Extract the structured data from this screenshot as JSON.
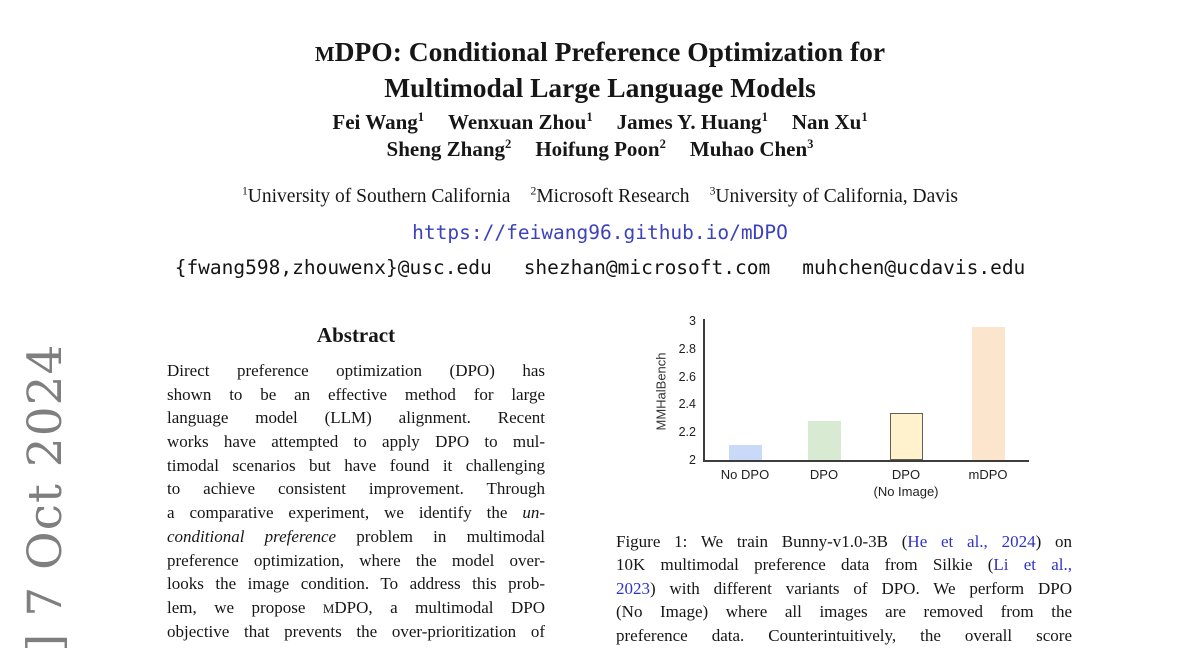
{
  "watermark": {
    "text": "] 7 Oct 2024"
  },
  "title": {
    "lines": [
      [
        {
          "t": "M",
          "s": "m"
        },
        {
          "t": "DPO: Conditional Preference Optimization for",
          "s": ""
        }
      ],
      [
        {
          "t": "Multimodal Large Language Models",
          "s": ""
        }
      ]
    ]
  },
  "authors": {
    "rows": [
      [
        {
          "name": "Fei Wang",
          "sup": "1"
        },
        {
          "name": "Wenxuan Zhou",
          "sup": "1"
        },
        {
          "name": "James Y. Huang",
          "sup": "1"
        },
        {
          "name": "Nan Xu",
          "sup": "1"
        }
      ],
      [
        {
          "name": "Sheng Zhang",
          "sup": "2"
        },
        {
          "name": "Hoifung Poon",
          "sup": "2"
        },
        {
          "name": "Muhao Chen",
          "sup": "3"
        }
      ]
    ]
  },
  "affiliations": [
    {
      "sup": "1",
      "name": "University of Southern California"
    },
    {
      "sup": "2",
      "name": "Microsoft Research"
    },
    {
      "sup": "3",
      "name": "University of California, Davis"
    }
  ],
  "link": {
    "url": "https://feiwang96.github.io/mDPO"
  },
  "emails": [
    "{fwang598,zhouwenx}@usc.edu",
    "shezhan@microsoft.com",
    "muhchen@ucdavis.edu"
  ],
  "abstract": {
    "heading": "Abstract",
    "lines": [
      [
        {
          "t": "Direct preference optimization (DPO) has",
          "s": ""
        }
      ],
      [
        {
          "t": "shown to be an effective method for large",
          "s": ""
        }
      ],
      [
        {
          "t": "language model (LLM) alignment. Recent",
          "s": ""
        }
      ],
      [
        {
          "t": "works have attempted to apply DPO to mul-",
          "s": ""
        }
      ],
      [
        {
          "t": "timodal scenarios but have found it challenging",
          "s": ""
        }
      ],
      [
        {
          "t": "to achieve consistent improvement. Through",
          "s": ""
        }
      ],
      [
        {
          "t": "a comparative experiment, we identify the ",
          "s": ""
        },
        {
          "t": "un-",
          "s": "i"
        }
      ],
      [
        {
          "t": "conditional preference",
          "s": "i"
        },
        {
          "t": " problem in multimodal",
          "s": ""
        }
      ],
      [
        {
          "t": "preference optimization, where the model over-",
          "s": ""
        }
      ],
      [
        {
          "t": "looks the image condition. To address this prob-",
          "s": ""
        }
      ],
      [
        {
          "t": "lem, we propose ",
          "s": ""
        },
        {
          "t": "M",
          "s": "m"
        },
        {
          "t": "DPO, a multimodal DPO",
          "s": ""
        }
      ],
      [
        {
          "t": "objective that prevents the over-prioritization of",
          "s": ""
        }
      ]
    ]
  },
  "figure": {
    "caption_lines": [
      [
        {
          "t": "Figure 1: We train Bunny-v1.0-3B (",
          "s": ""
        },
        {
          "t": "He et al., 2024",
          "s": "link"
        },
        {
          "t": ") on",
          "s": ""
        }
      ],
      [
        {
          "t": "10K multimodal preference data from Silkie (",
          "s": ""
        },
        {
          "t": "Li et al.,",
          "s": "link"
        }
      ],
      [
        {
          "t": "2023",
          "s": "link"
        },
        {
          "t": ") with different variants of DPO. We perform DPO",
          "s": ""
        }
      ],
      [
        {
          "t": "(No Image) where all images are removed from the",
          "s": ""
        }
      ],
      [
        {
          "t": "preference data. Counterintuitively, the overall score",
          "s": ""
        }
      ]
    ]
  },
  "chart_data": {
    "type": "bar",
    "title": "",
    "xlabel": "",
    "ylabel": "MMHalBench",
    "ylim": [
      2,
      3
    ],
    "yticks": [
      "3",
      "2.8",
      "2.6",
      "2.4",
      "2.2",
      "2"
    ],
    "categories": [
      "No DPO",
      "DPO",
      "DPO (No Image)",
      "mDPO"
    ],
    "category_label_lines": [
      [
        "No DPO"
      ],
      [
        "DPO"
      ],
      [
        "DPO",
        "(No Image)"
      ],
      [
        "mDPO"
      ]
    ],
    "values": [
      2.11,
      2.28,
      2.34,
      2.96
    ],
    "bar_colors": [
      "#c9daf8",
      "#d9ead3",
      "#fff2cc",
      "#fce5cd"
    ],
    "bar_border_colors": [
      null,
      null,
      "#5f5f57",
      null
    ],
    "grid": false,
    "legend": false
  },
  "colors": {
    "url_blue": "#3c42bd",
    "cite_blue": "#2e32cb",
    "watermark_gray": "#7f7f7f",
    "axis_gray": "#3d3d3d"
  }
}
